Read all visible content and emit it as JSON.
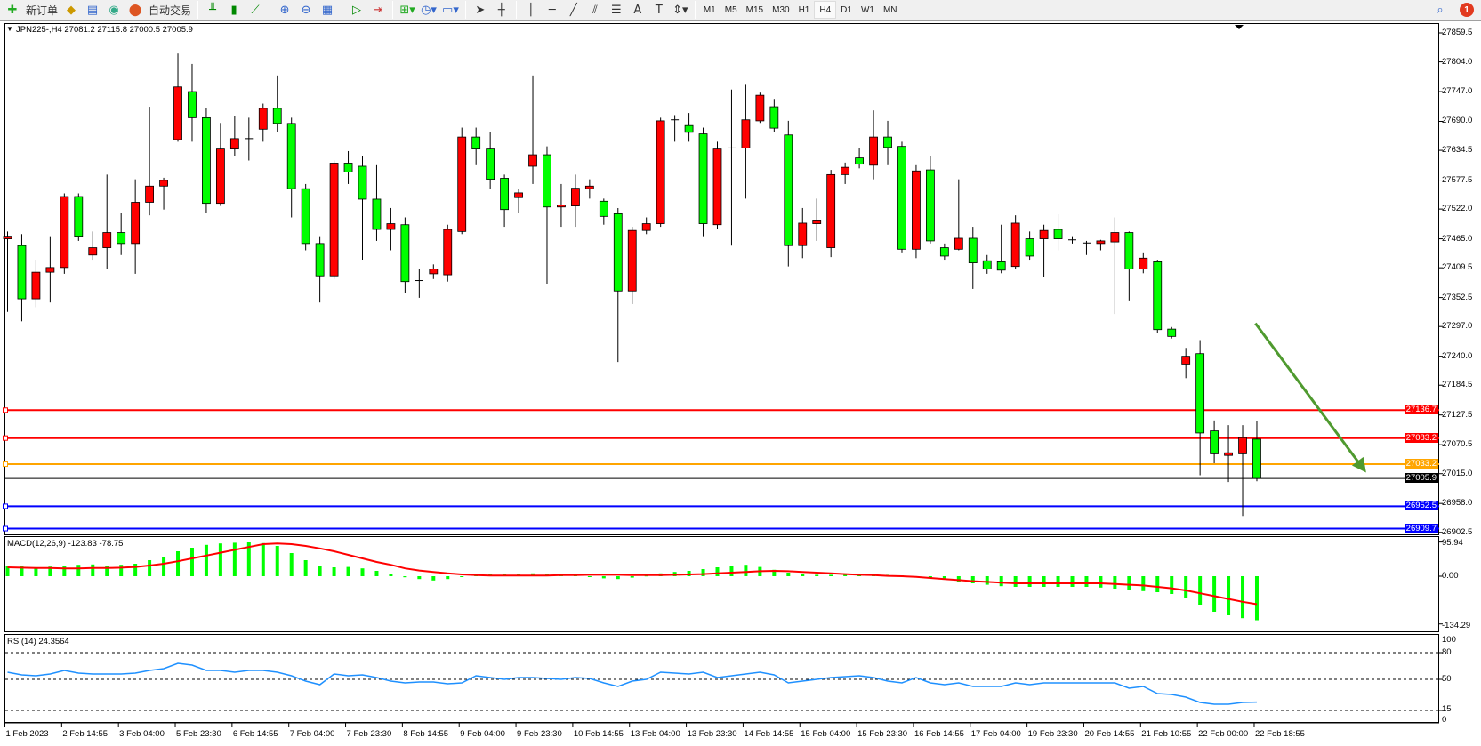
{
  "toolbar": {
    "new_order_label": "新订单",
    "auto_trading_label": "自动交易",
    "timeframes": [
      "M1",
      "M5",
      "M15",
      "M30",
      "H1",
      "H4",
      "D1",
      "W1",
      "MN"
    ],
    "active_timeframe": "H4",
    "notification_count": "1",
    "icons": [
      "new-order-icon",
      "market-watch-icon",
      "navigator-icon",
      "signals-icon",
      "auto-trading-icon",
      "bar-chart-icon",
      "candlestick-icon",
      "line-chart-icon",
      "zoom-in-icon",
      "zoom-out-icon",
      "tile-windows-icon",
      "auto-scroll-icon",
      "chart-shift-icon",
      "indicators-icon",
      "periods-icon",
      "templates-icon",
      "cursor-icon",
      "crosshair-icon",
      "vertical-line-icon",
      "horizontal-line-icon",
      "trendline-icon",
      "equidistant-channel-icon",
      "fibonacci-icon",
      "text-icon",
      "text-label-icon",
      "arrows-icon",
      "search-icon",
      "notification-icon"
    ]
  },
  "chart": {
    "symbol_info": "JPN225-,H4  27081.2 27115.8 27000.5 27005.9",
    "price_ticks": [
      "27859.5",
      "27804.0",
      "27747.0",
      "27690.0",
      "27634.5",
      "27577.5",
      "27522.0",
      "27465.0",
      "27409.5",
      "27352.5",
      "27297.0",
      "27240.0",
      "27184.5",
      "27127.5",
      "27070.5",
      "27015.0",
      "26958.0",
      "26902.5"
    ],
    "time_labels": [
      "1 Feb 2023",
      "2 Feb 14:55",
      "3 Feb 04:00",
      "5 Feb 23:30",
      "6 Feb 14:55",
      "7 Feb 04:00",
      "7 Feb 23:30",
      "8 Feb 14:55",
      "9 Feb 04:00",
      "9 Feb 23:30",
      "10 Feb 14:55",
      "13 Feb 04:00",
      "13 Feb 23:30",
      "14 Feb 14:55",
      "15 Feb 04:00",
      "15 Feb 23:30",
      "16 Feb 14:55",
      "17 Feb 04:00",
      "19 Feb 23:30",
      "20 Feb 14:55",
      "21 Feb 10:55",
      "22 Feb 00:00",
      "22 Feb 18:55"
    ],
    "horizontal_lines": [
      {
        "price": "27136.7",
        "color": "#ff0000"
      },
      {
        "price": "27083.2",
        "color": "#ff0000"
      },
      {
        "price": "27033.2",
        "color": "#ffa500"
      },
      {
        "price": "26952.5",
        "color": "#0000ff"
      },
      {
        "price": "26909.7",
        "color": "#0000ff"
      }
    ],
    "current_price": "27005.9",
    "colors": {
      "bull": "#ff0000",
      "bear": "#00ff00",
      "arrow": "#4f9a2f",
      "macd_hist": "#00ff00",
      "macd_signal": "#ff0000",
      "rsi": "#1e90ff"
    }
  },
  "macd": {
    "label": "MACD(12,26,9) -123.83 -78.75",
    "scale_top": "95.94",
    "scale_zero": "0.00",
    "scale_bottom": "-134.29"
  },
  "rsi": {
    "label": "RSI(14) 24.3564",
    "levels": [
      "100",
      "80",
      "50",
      "15",
      "0"
    ]
  },
  "chart_data": {
    "type": "candlestick",
    "ylim": [
      26900,
      27878
    ],
    "ohlc": [
      [
        27465,
        27479,
        27325,
        27470
      ],
      [
        27452,
        27474,
        27307,
        27350
      ],
      [
        27350,
        27425,
        27334,
        27401
      ],
      [
        27401,
        27470,
        27343,
        27410
      ],
      [
        27410,
        27552,
        27398,
        27546
      ],
      [
        27546,
        27552,
        27461,
        27470
      ],
      [
        27434,
        27479,
        27425,
        27448
      ],
      [
        27448,
        27588,
        27407,
        27477
      ],
      [
        27477,
        27515,
        27434,
        27456
      ],
      [
        27456,
        27579,
        27398,
        27535
      ],
      [
        27535,
        27718,
        27510,
        27566
      ],
      [
        27566,
        27582,
        27521,
        27577
      ],
      [
        27655,
        27820,
        27651,
        27756
      ],
      [
        27747,
        27800,
        27651,
        27697
      ],
      [
        27697,
        27715,
        27515,
        27533
      ],
      [
        27533,
        27687,
        27528,
        27637
      ],
      [
        27637,
        27700,
        27624,
        27657
      ],
      [
        27657,
        27697,
        27615,
        27657
      ],
      [
        27675,
        27724,
        27651,
        27715
      ],
      [
        27715,
        27778,
        27669,
        27686
      ],
      [
        27686,
        27697,
        27506,
        27561
      ],
      [
        27561,
        27570,
        27443,
        27456
      ],
      [
        27456,
        27470,
        27343,
        27394
      ],
      [
        27394,
        27615,
        27388,
        27610
      ],
      [
        27610,
        27633,
        27570,
        27593
      ],
      [
        27604,
        27624,
        27425,
        27541
      ],
      [
        27541,
        27606,
        27461,
        27483
      ],
      [
        27483,
        27524,
        27443,
        27494
      ],
      [
        27492,
        27506,
        27361,
        27383
      ],
      [
        27385,
        27407,
        27352,
        27385
      ],
      [
        27398,
        27416,
        27388,
        27407
      ],
      [
        27396,
        27492,
        27383,
        27483
      ],
      [
        27479,
        27678,
        27474,
        27660
      ],
      [
        27660,
        27678,
        27606,
        27637
      ],
      [
        27637,
        27669,
        27561,
        27579
      ],
      [
        27581,
        27588,
        27488,
        27521
      ],
      [
        27544,
        27561,
        27515,
        27553
      ],
      [
        27604,
        27778,
        27570,
        27626
      ],
      [
        27626,
        27642,
        27379,
        27526
      ],
      [
        27526,
        27570,
        27488,
        27530
      ],
      [
        27528,
        27588,
        27488,
        27562
      ],
      [
        27561,
        27579,
        27542,
        27566
      ],
      [
        27537,
        27542,
        27492,
        27508
      ],
      [
        27513,
        27524,
        27229,
        27365
      ],
      [
        27365,
        27488,
        27340,
        27481
      ],
      [
        27481,
        27506,
        27474,
        27494
      ],
      [
        27494,
        27697,
        27488,
        27691
      ],
      [
        27693,
        27702,
        27651,
        27693
      ],
      [
        27682,
        27706,
        27651,
        27669
      ],
      [
        27666,
        27678,
        27470,
        27494
      ],
      [
        27492,
        27651,
        27483,
        27637
      ],
      [
        27639,
        27751,
        27452,
        27639
      ],
      [
        27639,
        27760,
        27542,
        27693
      ],
      [
        27691,
        27745,
        27687,
        27740
      ],
      [
        27718,
        27733,
        27669,
        27677
      ],
      [
        27664,
        27691,
        27412,
        27452
      ],
      [
        27452,
        27524,
        27428,
        27495
      ],
      [
        27494,
        27542,
        27461,
        27501
      ],
      [
        27448,
        27597,
        27430,
        27588
      ],
      [
        27588,
        27611,
        27570,
        27602
      ],
      [
        27620,
        27639,
        27600,
        27608
      ],
      [
        27606,
        27711,
        27579,
        27660
      ],
      [
        27660,
        27691,
        27606,
        27640
      ],
      [
        27642,
        27651,
        27439,
        27445
      ],
      [
        27445,
        27606,
        27428,
        27595
      ],
      [
        27597,
        27624,
        27456,
        27461
      ],
      [
        27448,
        27456,
        27425,
        27432
      ],
      [
        27445,
        27579,
        27443,
        27466
      ],
      [
        27466,
        27488,
        27369,
        27419
      ],
      [
        27423,
        27434,
        27398,
        27407
      ],
      [
        27421,
        27492,
        27399,
        27405
      ],
      [
        27412,
        27510,
        27408,
        27495
      ],
      [
        27465,
        27479,
        27425,
        27432
      ],
      [
        27465,
        27492,
        27392,
        27481
      ],
      [
        27483,
        27512,
        27443,
        27465
      ],
      [
        27463,
        27470,
        27456,
        27463
      ],
      [
        27457,
        27461,
        27434,
        27456
      ],
      [
        27456,
        27463,
        27443,
        27461
      ],
      [
        27459,
        27506,
        27321,
        27477
      ],
      [
        27477,
        27479,
        27347,
        27407
      ],
      [
        27407,
        27439,
        27399,
        27428
      ],
      [
        27421,
        27425,
        27285,
        27291
      ],
      [
        27292,
        27296,
        27274,
        27278
      ],
      [
        27225,
        27256,
        27198,
        27240
      ],
      [
        27245,
        27271,
        27012,
        27093
      ],
      [
        27097,
        27117,
        27035,
        27053
      ],
      [
        27050,
        27108,
        26999,
        27055
      ],
      [
        27053,
        27108,
        26934,
        27084
      ],
      [
        27081.2,
        27115.8,
        27000.5,
        27005.9
      ]
    ],
    "arrow": {
      "from": {
        "bar": 87.9,
        "price": 27303
      },
      "to": {
        "bar": 95.7,
        "price": 27017
      }
    },
    "macd_hist": [
      30,
      28,
      25,
      27,
      30,
      32,
      33,
      30,
      32,
      35,
      45,
      55,
      70,
      80,
      88,
      92,
      94,
      95,
      93,
      85,
      65,
      45,
      30,
      25,
      26,
      22,
      15,
      6,
      -3,
      -8,
      -12,
      -8,
      -2,
      3,
      5,
      6,
      5,
      8,
      6,
      4,
      3,
      -2,
      -6,
      -8,
      -4,
      2,
      8,
      12,
      15,
      20,
      25,
      30,
      32,
      26,
      18,
      10,
      6,
      4,
      4,
      5,
      4,
      3,
      4,
      2,
      -2,
      -6,
      -10,
      -15,
      -20,
      -24,
      -28,
      -30,
      -30,
      -30,
      -30,
      -30,
      -30,
      -32,
      -35,
      -40,
      -42,
      -45,
      -50,
      -60,
      -80,
      -100,
      -110,
      -118,
      -123.83
    ],
    "macd_signal": [
      25,
      24,
      23,
      23,
      22,
      22,
      23,
      23,
      24,
      26,
      30,
      35,
      42,
      50,
      58,
      66,
      74,
      82,
      90,
      92,
      90,
      85,
      78,
      70,
      60,
      50,
      40,
      32,
      22,
      16,
      12,
      8,
      5,
      3,
      2,
      2,
      2,
      2,
      2,
      3,
      3,
      4,
      4,
      4,
      3,
      3,
      3,
      4,
      5,
      6,
      8,
      10,
      12,
      14,
      15,
      14,
      12,
      10,
      8,
      6,
      4,
      3,
      1,
      0,
      -2,
      -5,
      -8,
      -11,
      -14,
      -16,
      -18,
      -20,
      -20,
      -20,
      -20,
      -20,
      -20,
      -20,
      -22,
      -24,
      -26,
      -30,
      -34,
      -40,
      -48,
      -56,
      -64,
      -72,
      -78.75
    ],
    "macd_ylim": [
      -134.29,
      95.94
    ],
    "rsi": [
      58,
      55,
      54,
      56,
      60,
      57,
      56,
      56,
      56,
      57,
      60,
      62,
      68,
      66,
      60,
      60,
      58,
      60,
      60,
      58,
      54,
      48,
      44,
      56,
      54,
      55,
      52,
      48,
      46,
      47,
      47,
      45,
      46,
      54,
      52,
      50,
      52,
      52,
      51,
      50,
      52,
      51,
      46,
      42,
      48,
      50,
      58,
      57,
      56,
      58,
      52,
      54,
      56,
      58,
      55,
      46,
      48,
      50,
      52,
      53,
      54,
      52,
      48,
      46,
      52,
      46,
      44,
      46,
      42,
      42,
      42,
      46,
      44,
      46,
      46,
      46,
      46,
      46,
      46,
      40,
      42,
      34,
      33,
      30,
      24,
      22,
      22,
      24,
      24.36
    ],
    "rsi_levels": [
      80,
      50,
      15
    ]
  }
}
